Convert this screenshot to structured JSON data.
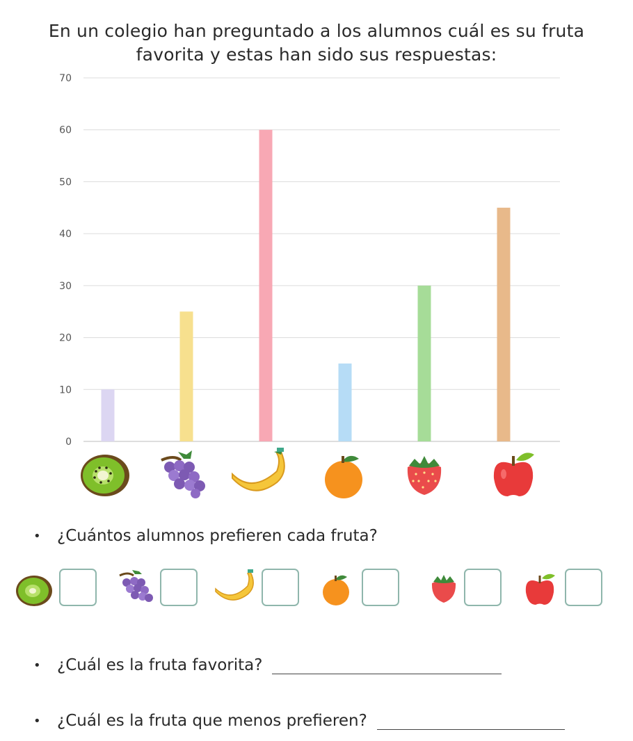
{
  "title_line1": "En un colegio han preguntado a los alumnos cuál es su fruta",
  "title_line2": "favorita y estas han sido sus respuestas:",
  "chart_data": {
    "type": "bar",
    "categories": [
      "kiwi",
      "uvas",
      "plátano",
      "naranja",
      "fresa",
      "manzana"
    ],
    "values": [
      10,
      25,
      60,
      15,
      30,
      45
    ],
    "colors": [
      "#dcd6f2",
      "#f7e08e",
      "#f8a8b4",
      "#b6dcf6",
      "#a6dc98",
      "#e8b98a"
    ],
    "yticks": [
      0,
      10,
      20,
      30,
      40,
      50,
      60,
      70
    ],
    "ylim": [
      0,
      70
    ],
    "grid": true
  },
  "questions": {
    "q1": "¿Cuántos alumnos prefieren cada fruta?",
    "q2": "¿Cuál es la fruta favorita?",
    "q3": "¿Cuál es la fruta que menos prefieren?",
    "bullet": "•"
  }
}
